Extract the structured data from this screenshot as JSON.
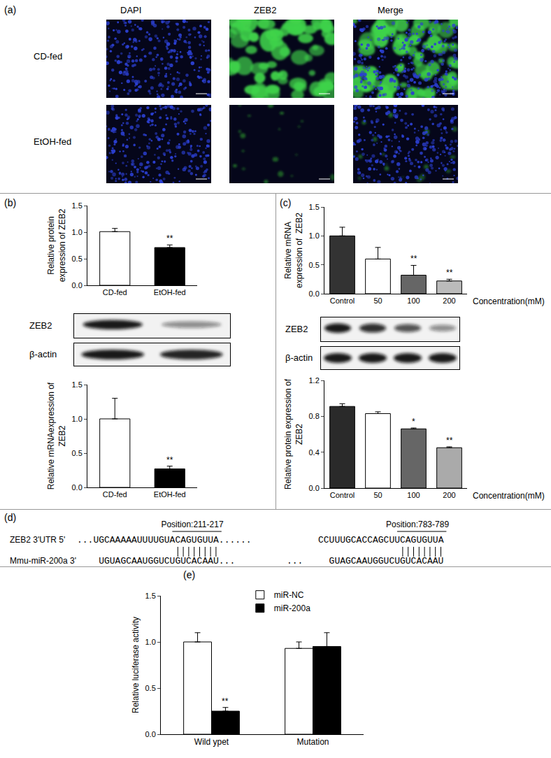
{
  "figure": {
    "panel_labels": [
      "(a)",
      "(b)",
      "(c)",
      "(d)",
      "(e)"
    ],
    "a": {
      "columns": [
        "DAPI",
        "ZEB2",
        "Merge"
      ],
      "rows": [
        "CD-fed",
        "EtOH-fed"
      ]
    },
    "b_blot": {
      "bands": [
        "ZEB2",
        "β-actin"
      ]
    },
    "c_blot": {
      "bands": [
        "ZEB2",
        "β-actin"
      ]
    },
    "d": {
      "positions": [
        "Position:211-217",
        "Position:783-789"
      ],
      "utr_label": "ZEB2 3'UTR  5'",
      "utr_sequences": [
        "...UGCAAAAAUUUUGUACAGUGUUA......",
        "CCUUUGCACCAGCUUCAGUGUUA"
      ],
      "mirna_label": "Mmu-miR-200a 3'",
      "mirna_sequences": [
        "UGUAGCAAUGGUCUGUCACAAU...",
        "GUAGCAAUGGUCUGUCACAAU"
      ],
      "separator": "..."
    }
  },
  "chart_data": [
    {
      "type": "bar",
      "y_label": [
        "Relative protein",
        "expression of ZEB2"
      ],
      "categories": [
        "CD-fed",
        "EtOH-fed"
      ],
      "values": [
        1.01,
        0.71
      ],
      "errors": [
        0.06,
        0.05
      ],
      "colors": [
        "#ffffff",
        "#000000"
      ],
      "significance": [
        null,
        "**"
      ],
      "ylim": [
        0,
        1.5
      ],
      "yticks": [
        {
          "value": 0,
          "label": "0.0"
        },
        {
          "value": 0.5,
          "label": "0.5"
        },
        {
          "value": 1,
          "label": "1.0"
        },
        {
          "value": 1.5,
          "label": "1.5"
        }
      ]
    },
    {
      "type": "bar",
      "y_label": [
        "Relative mRNAexpression of",
        "ZEB2"
      ],
      "categories": [
        "CD-fed",
        "EtOH-fed"
      ],
      "values": [
        1.0,
        0.27
      ],
      "errors": [
        0.3,
        0.04
      ],
      "colors": [
        "#ffffff",
        "#000000"
      ],
      "significance": [
        null,
        "**"
      ],
      "ylim": [
        0,
        1.5
      ],
      "yticks": [
        {
          "value": 0,
          "label": "0.0"
        },
        {
          "value": 0.5,
          "label": "0.5"
        },
        {
          "value": 1,
          "label": "1.0"
        },
        {
          "value": 1.5,
          "label": "1.5"
        }
      ]
    },
    {
      "type": "bar",
      "y_label": [
        "Relative mRNA",
        "expression of  ZEB2"
      ],
      "x_label": "Concentration(mM)",
      "categories": [
        "Control",
        "50",
        "100",
        "200"
      ],
      "values": [
        1.0,
        0.6,
        0.32,
        0.22
      ],
      "errors": [
        0.15,
        0.2,
        0.17,
        0.03
      ],
      "colors": [
        "#333333",
        "#ffffff",
        "#666666",
        "#bbbbbb"
      ],
      "significance": [
        null,
        null,
        "**",
        "**"
      ],
      "ylim": [
        0,
        1.5
      ],
      "yticks": [
        {
          "value": 0,
          "label": "0.0"
        },
        {
          "value": 0.5,
          "label": "0.5"
        },
        {
          "value": 1,
          "label": "1.0"
        },
        {
          "value": 1.5,
          "label": "1.5"
        }
      ]
    },
    {
      "type": "bar",
      "y_label": [
        "Relative protein expression of",
        "ZEB2"
      ],
      "x_label": "Concentration(mM)",
      "categories": [
        "Control",
        "50",
        "100",
        "200"
      ],
      "values": [
        0.91,
        0.83,
        0.66,
        0.45
      ],
      "errors": [
        0.03,
        0.02,
        0.01,
        0.01
      ],
      "colors": [
        "#2a2a2a",
        "#ffffff",
        "#666666",
        "#aaaaaa"
      ],
      "significance": [
        null,
        null,
        "*",
        "**"
      ],
      "ylim": [
        0,
        1.2
      ],
      "yticks": [
        {
          "value": 0,
          "label": "0.0"
        },
        {
          "value": 0.4,
          "label": "0.4"
        },
        {
          "value": 0.8,
          "label": "0.8"
        },
        {
          "value": 1.2,
          "label": "1.2"
        }
      ]
    },
    {
      "type": "bar",
      "y_label": [
        "Relative luciferase activity"
      ],
      "categories": [
        "Wild ypet",
        "Mutation"
      ],
      "legend": "top",
      "series": [
        {
          "name": "miR-NC",
          "color": "#ffffff",
          "values": [
            1.0,
            0.93
          ],
          "errors": [
            0.1,
            0.07
          ],
          "significance": [
            null,
            null
          ]
        },
        {
          "name": "miR-200a",
          "color": "#000000",
          "values": [
            0.25,
            0.95
          ],
          "errors": [
            0.04,
            0.15
          ],
          "significance": [
            "**",
            null
          ]
        }
      ],
      "ylim": [
        0,
        1.5
      ],
      "yticks": [
        {
          "value": 0,
          "label": "0.0"
        },
        {
          "value": 0.5,
          "label": "0.5"
        },
        {
          "value": 1,
          "label": "1.0"
        },
        {
          "value": 1.5,
          "label": "1.5"
        }
      ]
    }
  ]
}
